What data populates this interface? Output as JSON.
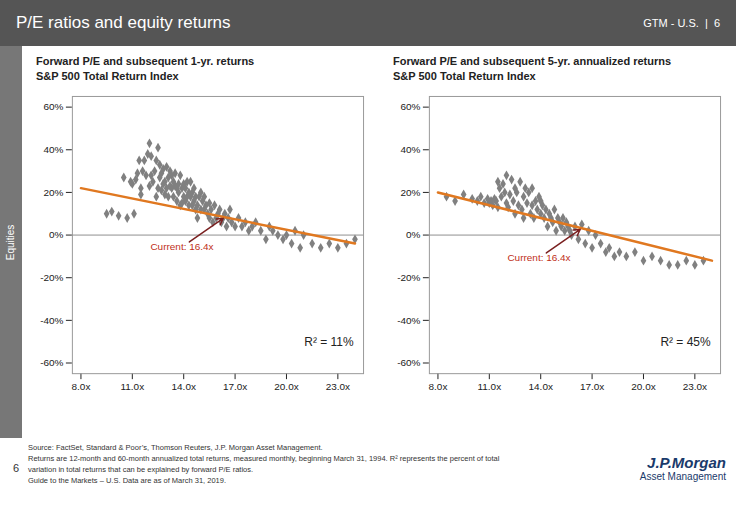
{
  "page": {
    "title": "P/E ratios and equity returns",
    "header_label": "GTM - U.S.  |  6",
    "sidebar_label": "Equities",
    "footer_text": "Source: FactSet, Standard & Poor’s, Thomson Reuters, J.P. Morgan Asset Management.\nReturns are 12-month and 60-month annualized total returns, measured monthly, beginning March 31, 1994. R² represents the percent of total\nvariation in total returns that can be explained by forward P/E ratios.\nGuide to the Markets – U.S. Data are as of March 31, 2019.",
    "logo": "J.P.Morgan",
    "logo_subtitle": "Asset Management",
    "page_number": "6"
  },
  "chart_data": [
    {
      "type": "scatter",
      "title": "Forward P/E and subsequent 1-yr. returns",
      "subtitle": "S&P 500 Total Return Index",
      "xlim": [
        7.5,
        24.5
      ],
      "ylim": [
        -0.65,
        0.65
      ],
      "xticks": [
        {
          "value": 8.0,
          "label": "8.0x"
        },
        {
          "value": 11.0,
          "label": "11.0x"
        },
        {
          "value": 14.0,
          "label": "14.0x"
        },
        {
          "value": 17.0,
          "label": "17.0x"
        },
        {
          "value": 20.0,
          "label": "20.0x"
        },
        {
          "value": 23.0,
          "label": "23.0x"
        }
      ],
      "yticks": [
        {
          "value": -0.6,
          "label": "-60%"
        },
        {
          "value": -0.4,
          "label": "-40%"
        },
        {
          "value": -0.2,
          "label": "-20%"
        },
        {
          "value": 0.0,
          "label": "0%"
        },
        {
          "value": 0.2,
          "label": "20%"
        },
        {
          "value": 0.4,
          "label": "40%"
        },
        {
          "value": 0.6,
          "label": "60%"
        }
      ],
      "grid": false,
      "series": [
        {
          "type": "scatter",
          "marker": "diamond",
          "color": "#808080",
          "x": [
            9.5,
            9.8,
            10.2,
            10.5,
            10.7,
            10.9,
            11.0,
            11.1,
            11.2,
            11.3,
            11.4,
            11.5,
            11.5,
            11.6,
            11.7,
            11.8,
            11.9,
            12.0,
            12.0,
            12.1,
            12.1,
            12.2,
            12.3,
            12.4,
            12.4,
            12.5,
            12.5,
            12.6,
            12.6,
            12.7,
            12.7,
            12.8,
            12.8,
            12.9,
            12.9,
            13.0,
            13.0,
            13.1,
            13.1,
            13.2,
            13.2,
            13.3,
            13.3,
            13.4,
            13.4,
            13.5,
            13.5,
            13.6,
            13.6,
            13.7,
            13.7,
            13.8,
            13.8,
            13.9,
            13.9,
            14.0,
            14.0,
            14.1,
            14.1,
            14.2,
            14.2,
            14.3,
            14.3,
            14.4,
            14.4,
            14.5,
            14.5,
            14.6,
            14.6,
            14.7,
            14.7,
            14.8,
            14.8,
            14.9,
            15.0,
            15.0,
            15.1,
            15.2,
            15.2,
            15.3,
            15.4,
            15.5,
            15.5,
            15.6,
            15.7,
            15.8,
            15.9,
            16.0,
            16.1,
            16.2,
            16.3,
            16.4,
            16.5,
            16.6,
            16.7,
            16.8,
            17.0,
            17.2,
            17.4,
            17.6,
            17.8,
            18.0,
            18.2,
            18.5,
            18.8,
            19.0,
            19.2,
            19.5,
            19.8,
            20.0,
            20.3,
            20.5,
            20.8,
            21.0,
            21.5,
            22.0,
            22.5,
            23.0,
            23.5,
            24.0
          ],
          "values": [
            0.1,
            0.11,
            0.09,
            0.27,
            0.08,
            0.25,
            0.24,
            0.1,
            0.26,
            0.29,
            0.35,
            0.22,
            0.19,
            0.3,
            0.35,
            0.28,
            0.38,
            0.23,
            0.43,
            0.28,
            0.37,
            0.25,
            0.3,
            0.18,
            0.35,
            0.22,
            0.41,
            0.27,
            0.33,
            0.29,
            0.21,
            0.24,
            0.31,
            0.25,
            0.19,
            0.22,
            0.32,
            0.27,
            0.18,
            0.23,
            0.3,
            0.22,
            0.28,
            0.25,
            0.18,
            0.23,
            0.29,
            0.22,
            0.16,
            0.24,
            0.2,
            0.14,
            0.28,
            0.22,
            0.15,
            0.24,
            0.18,
            0.22,
            0.16,
            0.18,
            0.25,
            0.2,
            0.14,
            0.18,
            0.25,
            0.14,
            0.2,
            0.16,
            0.22,
            0.12,
            0.18,
            0.14,
            0.08,
            0.18,
            0.12,
            0.2,
            0.16,
            0.12,
            0.18,
            0.14,
            0.1,
            0.08,
            0.15,
            0.12,
            0.06,
            0.14,
            0.08,
            0.1,
            0.12,
            0.06,
            0.08,
            0.1,
            0.04,
            0.08,
            0.12,
            0.06,
            0.04,
            0.08,
            0.04,
            0.06,
            0.02,
            0.04,
            0.06,
            0.02,
            -0.02,
            0.04,
            0.02,
            0.0,
            -0.02,
            0.0,
            -0.04,
            0.02,
            -0.06,
            0.0,
            -0.04,
            -0.06,
            -0.04,
            -0.06,
            -0.04,
            -0.02
          ]
        },
        {
          "type": "line",
          "color": "#e07820",
          "x": [
            8.0,
            24.0
          ],
          "values": [
            0.22,
            -0.04
          ]
        }
      ],
      "reference_lines": [
        {
          "y": 0.0,
          "color": "#909090"
        }
      ],
      "annotations": [
        {
          "text": "R² = 11%"
        },
        {
          "text": "Current: 16.4x",
          "x": 16.4,
          "color": "#c03020",
          "arrow_color": "#7a2020"
        }
      ]
    },
    {
      "type": "scatter",
      "title": "Forward P/E and subsequent 5-yr. annualized returns",
      "subtitle": "S&P 500 Total Return Index",
      "xlim": [
        7.5,
        24.5
      ],
      "ylim": [
        -0.65,
        0.65
      ],
      "xticks": [
        {
          "value": 8.0,
          "label": "8.0x"
        },
        {
          "value": 11.0,
          "label": "11.0x"
        },
        {
          "value": 14.0,
          "label": "14.0x"
        },
        {
          "value": 17.0,
          "label": "17.0x"
        },
        {
          "value": 20.0,
          "label": "20.0x"
        },
        {
          "value": 23.0,
          "label": "23.0x"
        }
      ],
      "yticks": [
        {
          "value": -0.6,
          "label": "-60%"
        },
        {
          "value": -0.4,
          "label": "-40%"
        },
        {
          "value": -0.2,
          "label": "-20%"
        },
        {
          "value": 0.0,
          "label": "0%"
        },
        {
          "value": 0.2,
          "label": "20%"
        },
        {
          "value": 0.4,
          "label": "40%"
        },
        {
          "value": 0.6,
          "label": "60%"
        }
      ],
      "grid": false,
      "series": [
        {
          "type": "scatter",
          "marker": "diamond",
          "color": "#808080",
          "x": [
            8.5,
            9.0,
            9.5,
            10.0,
            10.3,
            10.5,
            10.7,
            10.9,
            11.0,
            11.1,
            11.2,
            11.3,
            11.4,
            11.5,
            11.5,
            11.6,
            11.7,
            11.8,
            11.9,
            12.0,
            12.0,
            12.1,
            12.2,
            12.3,
            12.4,
            12.5,
            12.5,
            12.6,
            12.7,
            12.8,
            12.9,
            13.0,
            13.0,
            13.1,
            13.2,
            13.3,
            13.4,
            13.5,
            13.5,
            13.6,
            13.7,
            13.8,
            13.9,
            14.0,
            14.0,
            14.1,
            14.2,
            14.3,
            14.4,
            14.5,
            14.6,
            14.7,
            14.8,
            14.9,
            15.0,
            15.1,
            15.2,
            15.3,
            15.4,
            15.5,
            15.6,
            15.7,
            15.8,
            16.0,
            16.2,
            16.4,
            16.6,
            16.8,
            17.0,
            17.2,
            17.5,
            17.8,
            18.0,
            18.3,
            18.6,
            19.0,
            19.5,
            20.0,
            20.5,
            21.0,
            21.5,
            22.0,
            22.5,
            23.0,
            23.5
          ],
          "values": [
            0.18,
            0.16,
            0.19,
            0.17,
            0.16,
            0.18,
            0.15,
            0.17,
            0.15,
            0.16,
            0.14,
            0.17,
            0.16,
            0.25,
            0.13,
            0.22,
            0.18,
            0.24,
            0.2,
            0.15,
            0.28,
            0.13,
            0.19,
            0.26,
            0.16,
            0.22,
            0.1,
            0.2,
            0.14,
            0.25,
            0.12,
            0.18,
            0.08,
            0.22,
            0.15,
            0.2,
            0.1,
            0.14,
            0.22,
            0.08,
            0.16,
            0.12,
            0.18,
            0.1,
            0.16,
            0.14,
            0.08,
            0.12,
            0.04,
            0.1,
            0.08,
            0.06,
            0.12,
            0.02,
            0.08,
            0.06,
            0.04,
            0.08,
            0.02,
            0.06,
            0.04,
            0.02,
            0.0,
            0.04,
            -0.02,
            0.05,
            -0.04,
            0.02,
            -0.06,
            0.0,
            -0.04,
            -0.08,
            -0.06,
            -0.1,
            -0.08,
            -0.1,
            -0.08,
            -0.12,
            -0.1,
            -0.12,
            -0.14,
            -0.14,
            -0.12,
            -0.14,
            -0.12
          ]
        },
        {
          "type": "line",
          "color": "#e07820",
          "x": [
            8.0,
            24.0
          ],
          "values": [
            0.2,
            -0.12
          ]
        }
      ],
      "reference_lines": [
        {
          "y": 0.0,
          "color": "#909090"
        }
      ],
      "annotations": [
        {
          "text": "R² = 45%"
        },
        {
          "text": "Current: 16.4x",
          "x": 16.4,
          "color": "#c03020",
          "arrow_color": "#7a2020"
        }
      ]
    }
  ]
}
